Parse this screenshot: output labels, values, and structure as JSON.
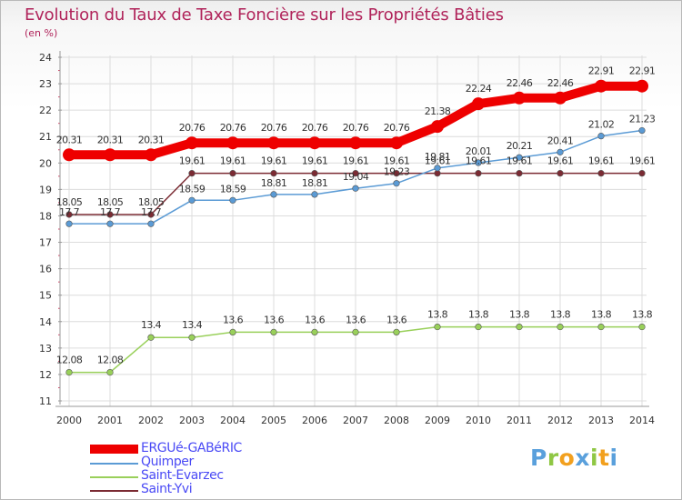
{
  "chart_data": {
    "type": "line",
    "title": "Evolution du Taux de Taxe Foncière sur les Propriétés Bâties",
    "subtitle": "(en %)",
    "x": [
      "2000",
      "2001",
      "2002",
      "2003",
      "2004",
      "2005",
      "2006",
      "2007",
      "2008",
      "2009",
      "2010",
      "2011",
      "2012",
      "2013",
      "2014"
    ],
    "ylim": [
      11,
      24
    ],
    "yticks": [
      "11",
      "12",
      "13",
      "14",
      "15",
      "16",
      "17",
      "18",
      "19",
      "20",
      "21",
      "22",
      "23",
      "24"
    ],
    "series": [
      {
        "name": "ERGUé-GABéRIC",
        "color": "#ee0000",
        "values": [
          20.31,
          20.31,
          20.31,
          20.76,
          20.76,
          20.76,
          20.76,
          20.76,
          20.76,
          21.38,
          22.24,
          22.46,
          22.46,
          22.91,
          22.91
        ],
        "labels": [
          "20.31",
          "20.31",
          "20.31",
          "20.76",
          "20.76",
          "20.76",
          "20.76",
          "20.76",
          "20.76",
          "21.38",
          "22.24",
          "22.46",
          "22.46",
          "22.91",
          "22.91"
        ]
      },
      {
        "name": "Quimper",
        "color": "#5b9bd5",
        "values": [
          17.7,
          17.7,
          17.7,
          18.59,
          18.59,
          18.81,
          18.81,
          19.04,
          19.23,
          19.81,
          20.01,
          20.21,
          20.41,
          21.02,
          21.23
        ],
        "labels": [
          "17.7",
          "17.7",
          "17.7",
          "18.59",
          "18.59",
          "18.81",
          "18.81",
          "19.04",
          "19.23",
          "19.81",
          "20.01",
          "20.21",
          "20.41",
          "21.02",
          "21.23"
        ]
      },
      {
        "name": "Saint-Evarzec",
        "color": "#99d05a",
        "values": [
          12.08,
          12.08,
          13.4,
          13.4,
          13.6,
          13.6,
          13.6,
          13.6,
          13.6,
          13.8,
          13.8,
          13.8,
          13.8,
          13.8,
          13.8
        ],
        "labels": [
          "12.08",
          "12.08",
          "13.4",
          "13.4",
          "13.6",
          "13.6",
          "13.6",
          "13.6",
          "13.6",
          "13.8",
          "13.8",
          "13.8",
          "13.8",
          "13.8",
          "13.8"
        ]
      },
      {
        "name": "Saint-Yvi",
        "color": "#7b2b33",
        "values": [
          18.05,
          18.05,
          18.05,
          19.61,
          19.61,
          19.61,
          19.61,
          19.61,
          19.61,
          19.61,
          19.61,
          19.61,
          19.61,
          19.61,
          19.61
        ],
        "labels": [
          "18.05",
          "18.05",
          "18.05",
          "19.61",
          "19.61",
          "19.61",
          "19.61",
          "19.61",
          "19.61",
          "19.61",
          "19.61",
          "19.61",
          "19.61",
          "19.61",
          "19.61"
        ]
      }
    ]
  },
  "branding": {
    "logo_letters": [
      "P",
      "r",
      "o",
      "x",
      "i",
      "t",
      "i"
    ],
    "logo_colors": [
      "#5aa0dc",
      "#8fc744",
      "#f2a01e",
      "#5aa0dc",
      "#8fc744",
      "#f2a01e",
      "#5aa0dc"
    ]
  }
}
